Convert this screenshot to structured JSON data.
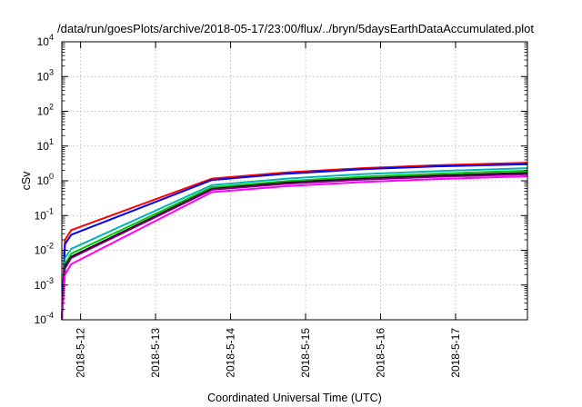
{
  "chart_data": {
    "type": "line",
    "title": "/data/run/goesPlots/archive/2018-05-17/23:00/flux/../bryn/5daysEarthDataAccumulated.plot",
    "xlabel": "Coordinated Universal Time (UTC)",
    "ylabel": "cSv",
    "y_scale": "log",
    "ylim": [
      0.0001,
      10000
    ],
    "y_ticks": [
      {
        "value": 0.0001,
        "base": "10",
        "exp": "-4"
      },
      {
        "value": 0.001,
        "base": "10",
        "exp": "-3"
      },
      {
        "value": 0.01,
        "base": "10",
        "exp": "-2"
      },
      {
        "value": 0.1,
        "base": "10",
        "exp": "-1"
      },
      {
        "value": 1,
        "base": "10",
        "exp": "0"
      },
      {
        "value": 10,
        "base": "10",
        "exp": "1"
      },
      {
        "value": 100,
        "base": "10",
        "exp": "2"
      },
      {
        "value": 1000,
        "base": "10",
        "exp": "3"
      },
      {
        "value": 10000,
        "base": "10",
        "exp": "4"
      }
    ],
    "xlim": [
      "2018-05-11 18:00",
      "2018-05-17 23:00"
    ],
    "x_ticks": [
      "2018-5-12",
      "2018-5-13",
      "2018-5-14",
      "2018-5-15",
      "2018-5-16",
      "2018-5-17"
    ],
    "grid": true,
    "x": [
      "2018-05-11 18:00",
      "2018-05-11 19:00",
      "2018-05-11 21:00",
      "2018-05-13 18:00",
      "2018-05-14 18:00",
      "2018-05-15 18:00",
      "2018-05-16 18:00",
      "2018-05-17 23:00"
    ],
    "series": [
      {
        "color": "#ff0000",
        "values": [
          0.0001,
          0.02,
          0.038,
          1.15,
          1.75,
          2.3,
          2.8,
          3.3
        ]
      },
      {
        "color": "#0000ff",
        "values": [
          0.0001,
          0.015,
          0.028,
          1.05,
          1.6,
          2.15,
          2.6,
          3.0
        ]
      },
      {
        "color": "#00b4b4",
        "values": [
          0.0001,
          0.006,
          0.011,
          0.75,
          1.15,
          1.55,
          1.9,
          2.3
        ]
      },
      {
        "color": "#00c800",
        "values": [
          0.0001,
          0.004,
          0.008,
          0.65,
          0.98,
          1.3,
          1.6,
          1.95
        ]
      },
      {
        "color": "#000000",
        "values": [
          0.0001,
          0.0035,
          0.0065,
          0.58,
          0.88,
          1.15,
          1.4,
          1.7
        ]
      },
      {
        "color": "#800080",
        "values": [
          0.0001,
          0.003,
          0.006,
          0.55,
          0.82,
          1.08,
          1.3,
          1.55
        ]
      },
      {
        "color": "#ff00ff",
        "values": [
          0.0001,
          0.002,
          0.004,
          0.47,
          0.7,
          0.92,
          1.12,
          1.35
        ]
      }
    ]
  }
}
